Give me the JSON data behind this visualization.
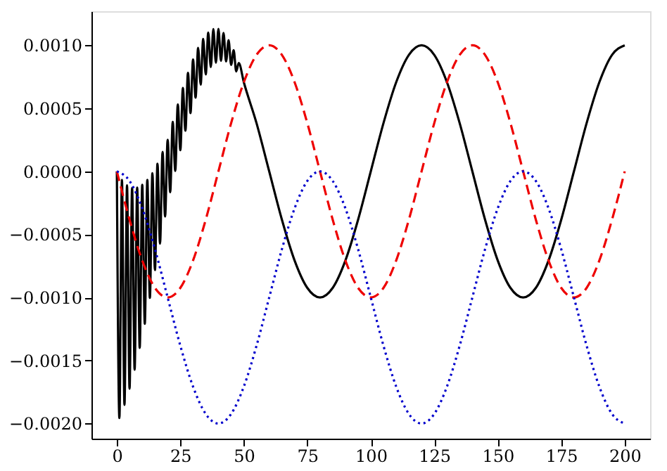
{
  "chart_data": {
    "type": "line",
    "xlim": [
      -10,
      210
    ],
    "xticks": [
      0,
      25,
      50,
      75,
      100,
      125,
      150,
      175,
      200
    ],
    "ylim": [
      -0.00212,
      0.00127
    ],
    "yticks": [
      {
        "value": -0.002,
        "label": "−0.0020"
      },
      {
        "value": -0.0015,
        "label": "−0.0015"
      },
      {
        "value": -0.001,
        "label": "−0.0010"
      },
      {
        "value": -0.0005,
        "label": "−0.0005"
      },
      {
        "value": 0,
        "label": "0.0000"
      },
      {
        "value": 0.0005,
        "label": "0.0005"
      },
      {
        "value": 0.001,
        "label": "0.0010"
      }
    ],
    "grid": false,
    "marker": "none",
    "series": [
      {
        "color": "#000000",
        "line_style": "solid",
        "x": [
          0,
          1,
          2,
          3,
          4,
          5,
          6,
          7,
          8,
          9,
          10,
          11,
          12,
          13,
          14,
          15,
          16,
          17,
          18,
          19,
          20,
          21,
          22,
          23,
          24,
          25,
          26,
          27,
          28,
          29,
          30,
          31,
          32,
          33,
          34,
          35,
          36,
          37,
          38,
          39,
          40,
          41,
          42,
          43,
          44,
          45,
          46,
          47,
          48,
          50,
          55,
          60,
          65,
          70,
          75,
          80,
          85,
          90,
          95,
          100,
          105,
          110,
          115,
          120,
          125,
          130,
          135,
          140,
          145,
          150,
          155,
          160,
          165,
          170,
          175,
          180,
          185,
          190,
          195,
          200
        ],
        "values": [
          0,
          -0.001957,
          -6.8e-05,
          -0.001852,
          -0.000111,
          -0.001724,
          -0.000131,
          -0.001573,
          -0.000129,
          -0.0014,
          -0.000107,
          -0.001209,
          -6.8e-05,
          -0.001003,
          -1.4e-05,
          -0.000783,
          6.1e-05,
          -0.000573,
          0.000154,
          -0.000358,
          0.00025,
          -0.000165,
          0.000392,
          4e-06,
          0.000531,
          0.000168,
          0.000662,
          0.000322,
          0.000782,
          0.000462,
          0.000887,
          0.000585,
          0.000979,
          0.000688,
          0.001051,
          0.000769,
          0.001101,
          0.000827,
          0.001128,
          0.000862,
          0.00113,
          0.000877,
          0.001098,
          0.000872,
          0.001041,
          0.000844,
          0.000961,
          0.000793,
          0.000859,
          0.000707,
          0.000383,
          0,
          -0.000383,
          -0.000707,
          -0.000924,
          -0.001,
          -0.000924,
          -0.000707,
          -0.000383,
          0,
          0.000383,
          0.000707,
          0.000924,
          0.001,
          0.000924,
          0.000707,
          0.000383,
          0,
          -0.000383,
          -0.000707,
          -0.000924,
          -0.001,
          -0.000924,
          -0.000707,
          -0.000383,
          0,
          0.000383,
          0.000707,
          0.000924,
          0.001
        ]
      },
      {
        "color": "#ee0000",
        "line_style": "dashed",
        "x": [
          0,
          5,
          10,
          15,
          20,
          25,
          30,
          35,
          40,
          45,
          50,
          55,
          60,
          65,
          70,
          75,
          80,
          85,
          90,
          95,
          100,
          105,
          110,
          115,
          120,
          125,
          130,
          135,
          140,
          145,
          150,
          155,
          160,
          165,
          170,
          175,
          180,
          185,
          190,
          195,
          200
        ],
        "values": [
          0,
          -0.000383,
          -0.000707,
          -0.000924,
          -0.001,
          -0.000924,
          -0.000707,
          -0.000383,
          0,
          0.000383,
          0.000707,
          0.000924,
          0.001,
          0.000924,
          0.000707,
          0.000383,
          0,
          -0.000383,
          -0.000707,
          -0.000924,
          -0.001,
          -0.000924,
          -0.000707,
          -0.000383,
          0,
          0.000383,
          0.000707,
          0.000924,
          0.001,
          0.000924,
          0.000707,
          0.000383,
          0,
          -0.000383,
          -0.000707,
          -0.000924,
          -0.001,
          -0.000924,
          -0.000707,
          -0.000383,
          0
        ]
      },
      {
        "color": "#0000cc",
        "line_style": "dotted",
        "x": [
          0,
          5,
          10,
          15,
          20,
          25,
          30,
          35,
          40,
          45,
          50,
          55,
          60,
          65,
          70,
          75,
          80,
          85,
          90,
          95,
          100,
          105,
          110,
          115,
          120,
          125,
          130,
          135,
          140,
          145,
          150,
          155,
          160,
          165,
          170,
          175,
          180,
          185,
          190,
          195,
          200
        ],
        "values": [
          0,
          -7.6e-05,
          -0.000293,
          -0.000617,
          -0.001,
          -0.001383,
          -0.001707,
          -0.001924,
          -0.002,
          -0.001924,
          -0.001707,
          -0.001383,
          -0.001,
          -0.000617,
          -0.000293,
          -7.6e-05,
          0,
          -7.6e-05,
          -0.000293,
          -0.000617,
          -0.001,
          -0.001383,
          -0.001707,
          -0.001924,
          -0.002,
          -0.001924,
          -0.001707,
          -0.001383,
          -0.001,
          -0.000617,
          -0.000293,
          -7.6e-05,
          0,
          -7.6e-05,
          -0.000293,
          -0.000617,
          -0.001,
          -0.001383,
          -0.001707,
          -0.001924,
          -0.002
        ]
      }
    ]
  }
}
